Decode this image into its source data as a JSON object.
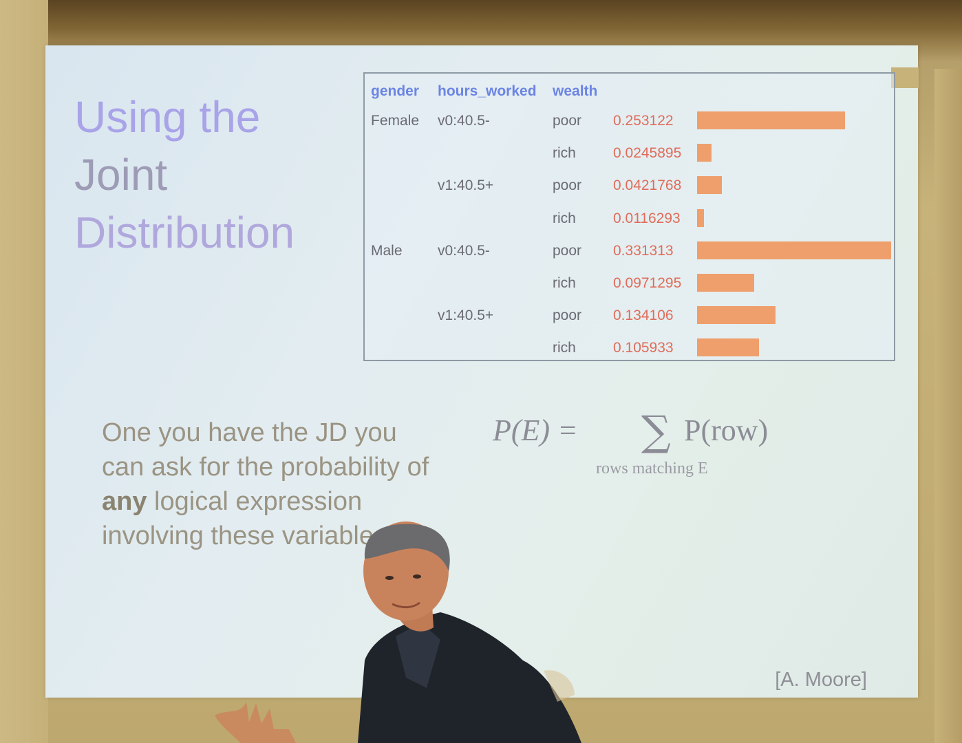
{
  "slide": {
    "title_lines": [
      "Using the",
      "Joint",
      "Distribution"
    ],
    "body_pre": "One you have the JD you can ask for the probability of ",
    "body_bold": "any",
    "body_post": " logical expression involving these variables",
    "formula_lhs": "P(E) =",
    "formula_sigma": "∑",
    "formula_rhs": "P(row)",
    "formula_subscript": "rows matching E",
    "attribution": "[A. Moore]"
  },
  "table": {
    "headers": [
      "gender",
      "hours_worked",
      "wealth"
    ],
    "rows": [
      {
        "gender": "Female",
        "hours": "v0:40.5-",
        "wealth": "poor",
        "prob": "0.253122",
        "value": 0.253122
      },
      {
        "gender": "",
        "hours": "",
        "wealth": "rich",
        "prob": "0.0245895",
        "value": 0.0245895
      },
      {
        "gender": "",
        "hours": "v1:40.5+",
        "wealth": "poor",
        "prob": "0.0421768",
        "value": 0.0421768
      },
      {
        "gender": "",
        "hours": "",
        "wealth": "rich",
        "prob": "0.0116293",
        "value": 0.0116293
      },
      {
        "gender": "Male",
        "hours": "v0:40.5-",
        "wealth": "poor",
        "prob": "0.331313",
        "value": 0.331313
      },
      {
        "gender": "",
        "hours": "",
        "wealth": "rich",
        "prob": "0.0971295",
        "value": 0.0971295
      },
      {
        "gender": "",
        "hours": "v1:40.5+",
        "wealth": "poor",
        "prob": "0.134106",
        "value": 0.134106
      },
      {
        "gender": "",
        "hours": "",
        "wealth": "rich",
        "prob": "0.105933",
        "value": 0.105933
      }
    ],
    "bar_color": "#ef9f6c",
    "header_color": "#6b84e3",
    "prob_color": "#e06c5a"
  },
  "colors": {
    "title": "#a9a3e8",
    "body_text": "#9b9483",
    "screen": "#e0ebf0",
    "wall": "#bda86f"
  }
}
